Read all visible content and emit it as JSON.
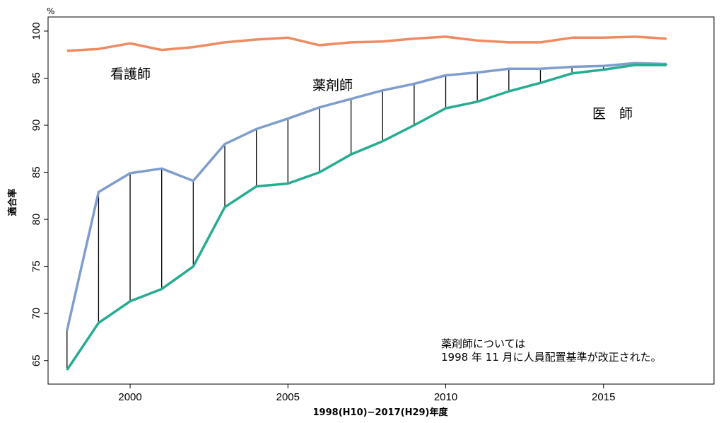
{
  "chart_data": {
    "type": "line",
    "title": "",
    "xlabel": "1998(H10)−2017(H29)年度",
    "ylabel": "適合率",
    "unit": "%",
    "x": [
      1998,
      1999,
      2000,
      2001,
      2002,
      2003,
      2004,
      2005,
      2006,
      2007,
      2008,
      2009,
      2010,
      2011,
      2012,
      2013,
      2014,
      2015,
      2016,
      2017
    ],
    "xlim": [
      1997.4,
      2018.5
    ],
    "ylim": [
      62.5,
      101.5
    ],
    "xticks": [
      2000,
      2005,
      2010,
      2015
    ],
    "yticks": [
      65,
      70,
      75,
      80,
      85,
      90,
      95,
      100
    ],
    "grid": false,
    "series": [
      {
        "name": "看護師",
        "color": "#ef8a62",
        "values": [
          97.9,
          98.1,
          98.7,
          98.0,
          98.3,
          98.8,
          99.1,
          99.3,
          98.5,
          98.8,
          98.9,
          99.2,
          99.4,
          99.0,
          98.8,
          98.8,
          99.3,
          99.3,
          99.4,
          99.2
        ]
      },
      {
        "name": "薬剤師",
        "color": "#7f9dcc",
        "values": [
          68.2,
          82.9,
          84.9,
          85.4,
          84.1,
          88.0,
          89.6,
          90.7,
          91.9,
          92.8,
          93.7,
          94.4,
          95.3,
          95.6,
          96.0,
          96.0,
          96.2,
          96.3,
          96.6,
          96.5
        ]
      },
      {
        "name": "医　師",
        "color": "#26ac91",
        "values": [
          64.0,
          69.0,
          71.3,
          72.6,
          75.0,
          81.3,
          83.5,
          83.8,
          85.0,
          86.9,
          88.3,
          90.0,
          91.8,
          92.5,
          93.6,
          94.5,
          95.5,
          95.9,
          96.4,
          96.4
        ]
      }
    ],
    "annotation": [
      "薬剤師については",
      "1998 年 11 月に人員配置基準が改正された。"
    ],
    "gap_lines_color": "#000000"
  }
}
